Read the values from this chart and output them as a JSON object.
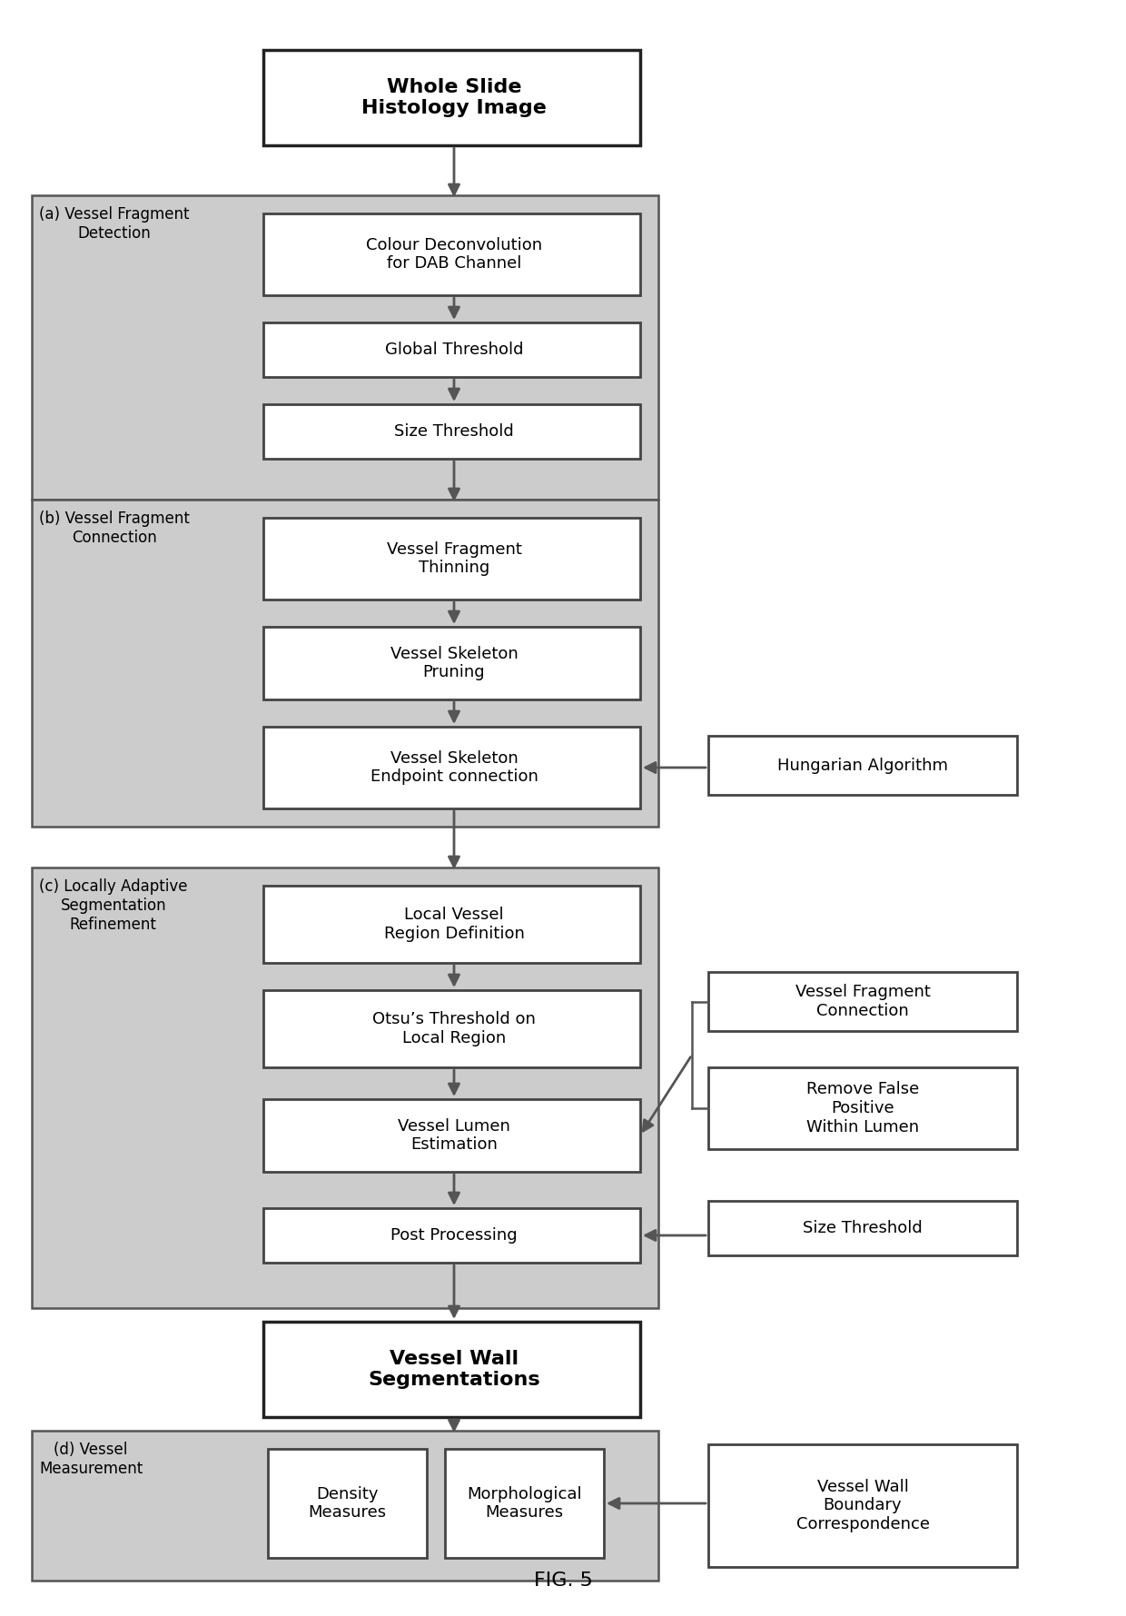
{
  "bg_color": "#ffffff",
  "box_fill_white": "#ffffff",
  "section_fill": "#cccccc",
  "border_color": "#444444",
  "arrow_color": "#555555",
  "text_color": "#000000",
  "fig_caption": "FIG. 5",
  "top_box": {
    "label": "Whole Slide\nHistology Image"
  },
  "section_a_label": "(a) Vessel Fragment\nDetection",
  "section_a_boxes": [
    "Colour Deconvolution\nfor DAB Channel",
    "Global Threshold",
    "Size Threshold"
  ],
  "section_b_label": "(b) Vessel Fragment\nConnection",
  "section_b_boxes": [
    "Vessel Fragment\nThinning",
    "Vessel Skeleton\nPruning",
    "Vessel Skeleton\nEndpoint connection"
  ],
  "section_b_side": "Hungarian Algorithm",
  "section_c_label": "(c) Locally Adaptive\nSegmentation\nRefinement",
  "section_c_boxes": [
    "Local Vessel\nRegion Definition",
    "Otsu’s Threshold on\nLocal Region",
    "Vessel Lumen\nEstimation",
    "Post Processing"
  ],
  "section_c_side": [
    "Vessel Fragment\nConnection",
    "Remove False\nPositive\nWithin Lumen",
    "Size Threshold"
  ],
  "output_box": "Vessel Wall\nSegmentations",
  "section_d_label": "(d) Vessel\nMeasurement",
  "section_d_boxes": [
    "Density\nMeasures",
    "Morphological\nMeasures"
  ],
  "section_d_side": "Vessel Wall\nBoundary\nCorrespondence"
}
